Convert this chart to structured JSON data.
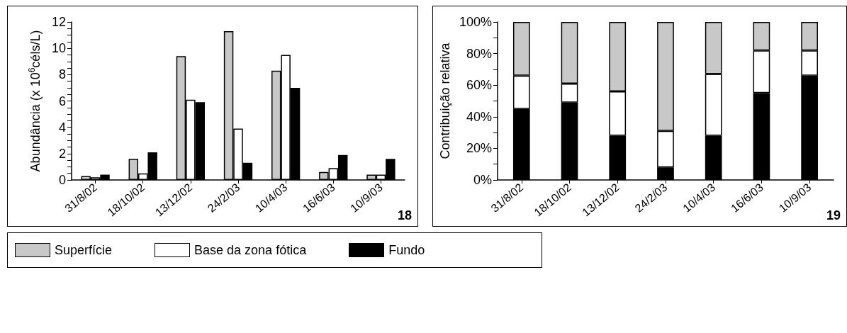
{
  "chart_data": [
    {
      "type": "bar",
      "ylabel": "Abundância (x 10$^{6}$céls/L)",
      "categories": [
        "31/8/02",
        "18/10/02",
        "13/12/02",
        "24/2/03",
        "10/4/03",
        "16/6/03",
        "10/9/03"
      ],
      "series": [
        {
          "name": "Superfície",
          "color": "#c8c8c8",
          "values": [
            0.3,
            1.6,
            9.4,
            11.3,
            8.3,
            0.6,
            0.4
          ]
        },
        {
          "name": "Base da zona fótica",
          "color": "#ffffff",
          "values": [
            0.2,
            0.5,
            6.1,
            3.9,
            9.5,
            0.9,
            0.4
          ]
        },
        {
          "name": "Fundo",
          "color": "#000000",
          "values": [
            0.4,
            2.1,
            5.9,
            1.3,
            7.0,
            1.9,
            1.6
          ]
        }
      ],
      "ylim": [
        0,
        12
      ],
      "yticks": [
        0,
        {
          "value": 0.5,
          "label": null
        },
        {
          "value": 1,
          "label": null
        },
        {
          "value": 1.5,
          "label": null
        },
        2,
        {
          "value": 2.5,
          "label": null
        },
        {
          "value": 3,
          "label": null
        },
        {
          "value": 3.5,
          "label": null
        },
        4,
        {
          "value": 4.5,
          "label": null
        },
        {
          "value": 5,
          "label": null
        },
        {
          "value": 5.5,
          "label": null
        },
        6,
        {
          "value": 6.5,
          "label": null
        },
        {
          "value": 7,
          "label": null
        },
        {
          "value": 7.5,
          "label": null
        },
        8,
        {
          "value": 8.5,
          "label": null
        },
        {
          "value": 9,
          "label": null
        },
        {
          "value": 9.5,
          "label": null
        },
        10,
        {
          "value": 10.5,
          "label": null
        },
        {
          "value": 11,
          "label": null
        },
        {
          "value": 11.5,
          "label": null
        },
        12
      ],
      "grid": false,
      "legend": "bottom",
      "annotations": [
        "18"
      ]
    },
    {
      "type": "bar",
      "stacked": true,
      "ylabel": "Contribuição relativa",
      "categories": [
        "31/8/02",
        "18/10/02",
        "13/12/02",
        "24/2/03",
        "10/4/03",
        "16/6/03",
        "10/9/03"
      ],
      "series": [
        {
          "color": "#000000",
          "values": [
            45,
            49,
            28,
            8,
            28,
            55,
            66
          ]
        },
        {
          "color": "#ffffff",
          "values": [
            21,
            12,
            28,
            23,
            39,
            27,
            16
          ]
        },
        {
          "color": "#c8c8c8",
          "values": [
            34,
            39,
            44,
            69,
            33,
            18,
            18
          ]
        }
      ],
      "ylim": [
        0,
        100
      ],
      "yticks": [
        {
          "value": 0,
          "label": "0%"
        },
        {
          "value": 10,
          "label": null
        },
        {
          "value": 20,
          "label": "20%"
        },
        {
          "value": 30,
          "label": null
        },
        {
          "value": 40,
          "label": "40%"
        },
        {
          "value": 50,
          "label": null
        },
        {
          "value": 60,
          "label": "60%"
        },
        {
          "value": 70,
          "label": null
        },
        {
          "value": 80,
          "label": "80%"
        },
        {
          "value": 90,
          "label": null
        },
        {
          "value": 100,
          "label": "100%"
        }
      ],
      "grid": false,
      "legend": false,
      "annotations": [
        "19"
      ]
    }
  ]
}
